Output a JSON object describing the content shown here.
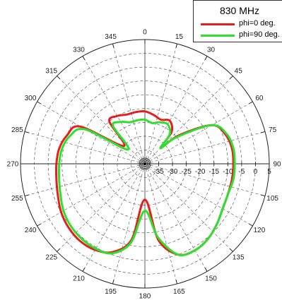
{
  "chart_data": {
    "type": "polar",
    "title": "830 MHz",
    "angle_unit": "deg",
    "angle_ticks": [
      0,
      15,
      30,
      45,
      60,
      75,
      90,
      105,
      120,
      135,
      150,
      165,
      180,
      195,
      210,
      225,
      240,
      255,
      270,
      285,
      300,
      315,
      330,
      345
    ],
    "angle_direction": "clockwise",
    "zero_location": "top",
    "r_ticks": [
      -35,
      -30,
      -25,
      -20,
      -15,
      -10,
      -5,
      0,
      5
    ],
    "r_range": [
      -40,
      5
    ],
    "grid": true,
    "legend_position": "top-right",
    "series": [
      {
        "name": "phi=0 deg.",
        "color": "#e61e1e",
        "points": [
          [
            0,
            -21
          ],
          [
            10,
            -22
          ],
          [
            20,
            -23
          ],
          [
            30,
            -22
          ],
          [
            40,
            -25
          ],
          [
            45,
            -32
          ],
          [
            50,
            -24
          ],
          [
            60,
            -12
          ],
          [
            70,
            -9
          ],
          [
            80,
            -8
          ],
          [
            90,
            -8
          ],
          [
            100,
            -8
          ],
          [
            110,
            -8
          ],
          [
            120,
            -7.5
          ],
          [
            130,
            -6
          ],
          [
            140,
            -4.5
          ],
          [
            150,
            -3.8
          ],
          [
            160,
            -5
          ],
          [
            170,
            -12
          ],
          [
            180,
            -27
          ],
          [
            190,
            -12
          ],
          [
            200,
            -6
          ],
          [
            210,
            -4
          ],
          [
            220,
            -3.5
          ],
          [
            230,
            -4
          ],
          [
            240,
            -5
          ],
          [
            250,
            -6.5
          ],
          [
            260,
            -7.5
          ],
          [
            270,
            -8
          ],
          [
            280,
            -8.5
          ],
          [
            290,
            -10
          ],
          [
            300,
            -13
          ],
          [
            310,
            -30
          ],
          [
            320,
            -20
          ],
          [
            330,
            -20
          ],
          [
            340,
            -21
          ],
          [
            350,
            -21
          ]
        ]
      },
      {
        "name": "phi=90 deg.",
        "color": "#2ee02e",
        "points": [
          [
            0,
            -24
          ],
          [
            10,
            -25
          ],
          [
            20,
            -24
          ],
          [
            30,
            -23.5
          ],
          [
            40,
            -26
          ],
          [
            45,
            -32
          ],
          [
            50,
            -25
          ],
          [
            60,
            -12
          ],
          [
            70,
            -8.5
          ],
          [
            80,
            -7.5
          ],
          [
            90,
            -7.5
          ],
          [
            100,
            -7.5
          ],
          [
            110,
            -8
          ],
          [
            120,
            -7.5
          ],
          [
            130,
            -6
          ],
          [
            140,
            -4.5
          ],
          [
            150,
            -3.8
          ],
          [
            160,
            -5
          ],
          [
            170,
            -13
          ],
          [
            180,
            -23
          ],
          [
            190,
            -11
          ],
          [
            200,
            -5.5
          ],
          [
            210,
            -4.5
          ],
          [
            220,
            -4.5
          ],
          [
            230,
            -5
          ],
          [
            240,
            -6
          ],
          [
            250,
            -7.5
          ],
          [
            260,
            -8.5
          ],
          [
            270,
            -9
          ],
          [
            280,
            -9.5
          ],
          [
            290,
            -11
          ],
          [
            300,
            -15
          ],
          [
            310,
            -32
          ],
          [
            320,
            -22
          ],
          [
            330,
            -22.5
          ],
          [
            340,
            -24
          ],
          [
            350,
            -24
          ]
        ]
      }
    ]
  }
}
